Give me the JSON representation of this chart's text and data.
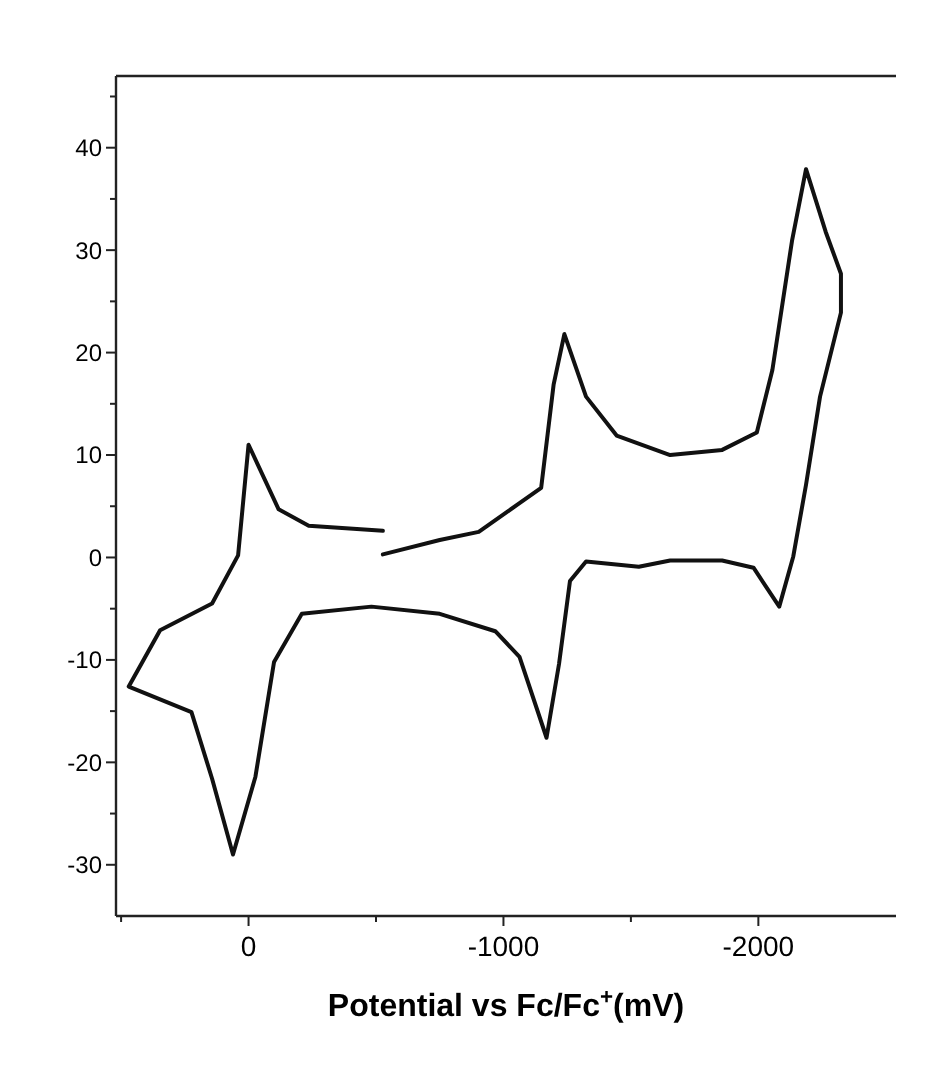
{
  "chart_data": {
    "type": "line",
    "xlabel": "Potential  vs Fc/Fc$^{+}$(mV)",
    "xlim": [
      520,
      -2540
    ],
    "ylim": [
      -35,
      47
    ],
    "xticks": [
      {
        "value": 500,
        "label": null
      },
      0,
      {
        "value": -500,
        "label": null
      },
      -1000,
      {
        "value": -1500,
        "label": null
      },
      -2000
    ],
    "yticks": [
      -30,
      {
        "value": -25,
        "label": null
      },
      -20,
      {
        "value": -15,
        "label": null
      },
      -10,
      {
        "value": -5,
        "label": null
      },
      0,
      {
        "value": 5,
        "label": null
      },
      10,
      {
        "value": 15,
        "label": null
      },
      20,
      {
        "value": 25,
        "label": null
      },
      30,
      {
        "value": 35,
        "label": null
      },
      40,
      {
        "value": 45,
        "label": null
      }
    ],
    "grid": false,
    "marker": "none",
    "line_style": "solid",
    "series": [
      {
        "color": "#111111",
        "x": [
          -527,
          -236,
          -118,
          0,
          41,
          143,
          347,
          470,
          224,
          143,
          61,
          -27,
          -100,
          -209,
          -482,
          -750,
          -968,
          -1063,
          -1169,
          -1218,
          -1261,
          -1324,
          -1531,
          -1654,
          -1858,
          -1981,
          -2082,
          -2137,
          -2187,
          -2242,
          -2324,
          -2324,
          -2264,
          -2187,
          -2132,
          -2055,
          -1994,
          -1858,
          -1654,
          -1444,
          -1324,
          -1239,
          -1197,
          -1148,
          -1063,
          -903,
          -750,
          -527
        ],
        "values": [
          2.6,
          3.1,
          4.7,
          11,
          0.2,
          -4.5,
          -7.1,
          -12.6,
          -15.1,
          -21.6,
          -29,
          -21.4,
          -10.2,
          -5.5,
          -4.8,
          -5.5,
          -7.2,
          -9.7,
          -17.6,
          -10.4,
          -2.3,
          -0.4,
          -0.9,
          -0.3,
          -0.3,
          -1,
          -4.8,
          0.1,
          7.1,
          15.7,
          23.9,
          27.7,
          31.8,
          37.9,
          30.9,
          18.3,
          12.2,
          10.5,
          10,
          11.9,
          15.7,
          21.8,
          16.9,
          6.8,
          5.3,
          2.5,
          1.7,
          0.3
        ]
      }
    ]
  }
}
